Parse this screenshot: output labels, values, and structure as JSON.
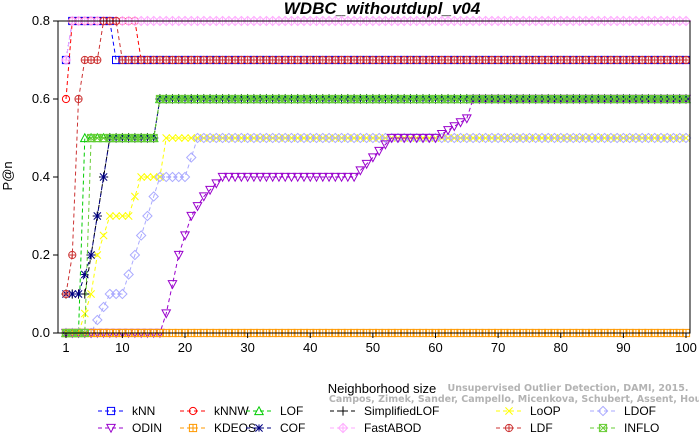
{
  "chart_data": {
    "type": "line",
    "title": "WDBC_withoutdupl_v04",
    "xlabel": "Neighborhood size",
    "ylabel": "P@n",
    "xlim": [
      1,
      100
    ],
    "ylim": [
      0,
      0.8
    ],
    "xticks": [
      1,
      10,
      20,
      30,
      40,
      50,
      60,
      70,
      80,
      90,
      100
    ],
    "yticks": [
      0.0,
      0.2,
      0.4,
      0.6,
      0.8
    ],
    "grid": false,
    "legend_position": "bottom",
    "credit": [
      "Unsupervised Outlier Detection, DAMI, 2015.",
      "Campos, Zimek, Sander, Campello, Micenkova, Schubert, Assent, Houle"
    ],
    "series": [
      {
        "name": "kNN",
        "color": "#0000ff",
        "marker": "square",
        "points": [
          [
            1,
            0.7
          ],
          [
            2,
            0.8
          ],
          [
            8,
            0.8
          ],
          [
            9,
            0.7
          ],
          [
            100,
            0.7
          ]
        ]
      },
      {
        "name": "kNNW",
        "color": "#ff0000",
        "marker": "circle",
        "points": [
          [
            1,
            0.6
          ],
          [
            2,
            0.8
          ],
          [
            12,
            0.8
          ],
          [
            13,
            0.7
          ],
          [
            100,
            0.7
          ]
        ]
      },
      {
        "name": "LOF",
        "color": "#00cc00",
        "marker": "triangle",
        "points": [
          [
            1,
            0.0
          ],
          [
            3,
            0.0
          ],
          [
            4,
            0.5
          ],
          [
            15,
            0.5
          ],
          [
            16,
            0.6
          ],
          [
            100,
            0.6
          ]
        ]
      },
      {
        "name": "SimplifiedLOF",
        "color": "#000000",
        "marker": "plus",
        "points": [
          [
            1,
            0.1
          ],
          [
            4,
            0.1
          ],
          [
            5,
            0.2
          ],
          [
            6,
            0.3
          ],
          [
            7,
            0.4
          ],
          [
            8,
            0.5
          ],
          [
            15,
            0.5
          ],
          [
            16,
            0.6
          ],
          [
            100,
            0.6
          ]
        ]
      },
      {
        "name": "LoOP",
        "color": "#ffff00",
        "marker": "x",
        "points": [
          [
            1,
            0.0
          ],
          [
            3,
            0.0
          ],
          [
            5,
            0.1
          ],
          [
            6,
            0.2
          ],
          [
            8,
            0.3
          ],
          [
            11,
            0.3
          ],
          [
            12,
            0.35
          ],
          [
            13,
            0.4
          ],
          [
            16,
            0.4
          ],
          [
            17,
            0.5
          ],
          [
            100,
            0.5
          ]
        ]
      },
      {
        "name": "LDOF",
        "color": "#aaaaff",
        "marker": "diamond",
        "points": [
          [
            1,
            0.0
          ],
          [
            5,
            0.0
          ],
          [
            8,
            0.1
          ],
          [
            10,
            0.1
          ],
          [
            12,
            0.2
          ],
          [
            14,
            0.3
          ],
          [
            16,
            0.4
          ],
          [
            20,
            0.4
          ],
          [
            22,
            0.5
          ],
          [
            100,
            0.5
          ]
        ]
      },
      {
        "name": "ODIN",
        "color": "#9900cc",
        "marker": "triangle-down",
        "points": [
          [
            1,
            0.0
          ],
          [
            16,
            0.0
          ],
          [
            17,
            0.05
          ],
          [
            19,
            0.2
          ],
          [
            21,
            0.3
          ],
          [
            23,
            0.35
          ],
          [
            26,
            0.4
          ],
          [
            47,
            0.4
          ],
          [
            50,
            0.45
          ],
          [
            53,
            0.5
          ],
          [
            60,
            0.5
          ],
          [
            65,
            0.55
          ],
          [
            66,
            0.6
          ],
          [
            100,
            0.6
          ]
        ]
      },
      {
        "name": "KDEOS",
        "color": "#ff9900",
        "marker": "square-cross",
        "points": [
          [
            1,
            0.0
          ],
          [
            100,
            0.0
          ]
        ]
      },
      {
        "name": "COF",
        "color": "#000080",
        "marker": "asterisk",
        "points": [
          [
            1,
            0.1
          ],
          [
            3,
            0.1
          ],
          [
            5,
            0.2
          ],
          [
            6,
            0.3
          ],
          [
            8,
            0.5
          ],
          [
            15,
            0.5
          ],
          [
            16,
            0.6
          ],
          [
            100,
            0.6
          ]
        ]
      },
      {
        "name": "FastABOD",
        "color": "#ffaaff",
        "marker": "diamond-cross",
        "points": [
          [
            1,
            0.7
          ],
          [
            2,
            0.8
          ],
          [
            100,
            0.8
          ]
        ]
      },
      {
        "name": "LDF",
        "color": "#cc3333",
        "marker": "circle-plus",
        "points": [
          [
            1,
            0.1
          ],
          [
            2,
            0.2
          ],
          [
            3,
            0.6
          ],
          [
            4,
            0.7
          ],
          [
            6,
            0.7
          ],
          [
            7,
            0.8
          ],
          [
            9,
            0.8
          ],
          [
            10,
            0.7
          ],
          [
            100,
            0.7
          ]
        ]
      },
      {
        "name": "INFLO",
        "color": "#66cc33",
        "marker": "square-x",
        "points": [
          [
            1,
            0.0
          ],
          [
            4,
            0.0
          ],
          [
            5,
            0.5
          ],
          [
            15,
            0.5
          ],
          [
            16,
            0.6
          ],
          [
            100,
            0.6
          ]
        ]
      }
    ]
  }
}
